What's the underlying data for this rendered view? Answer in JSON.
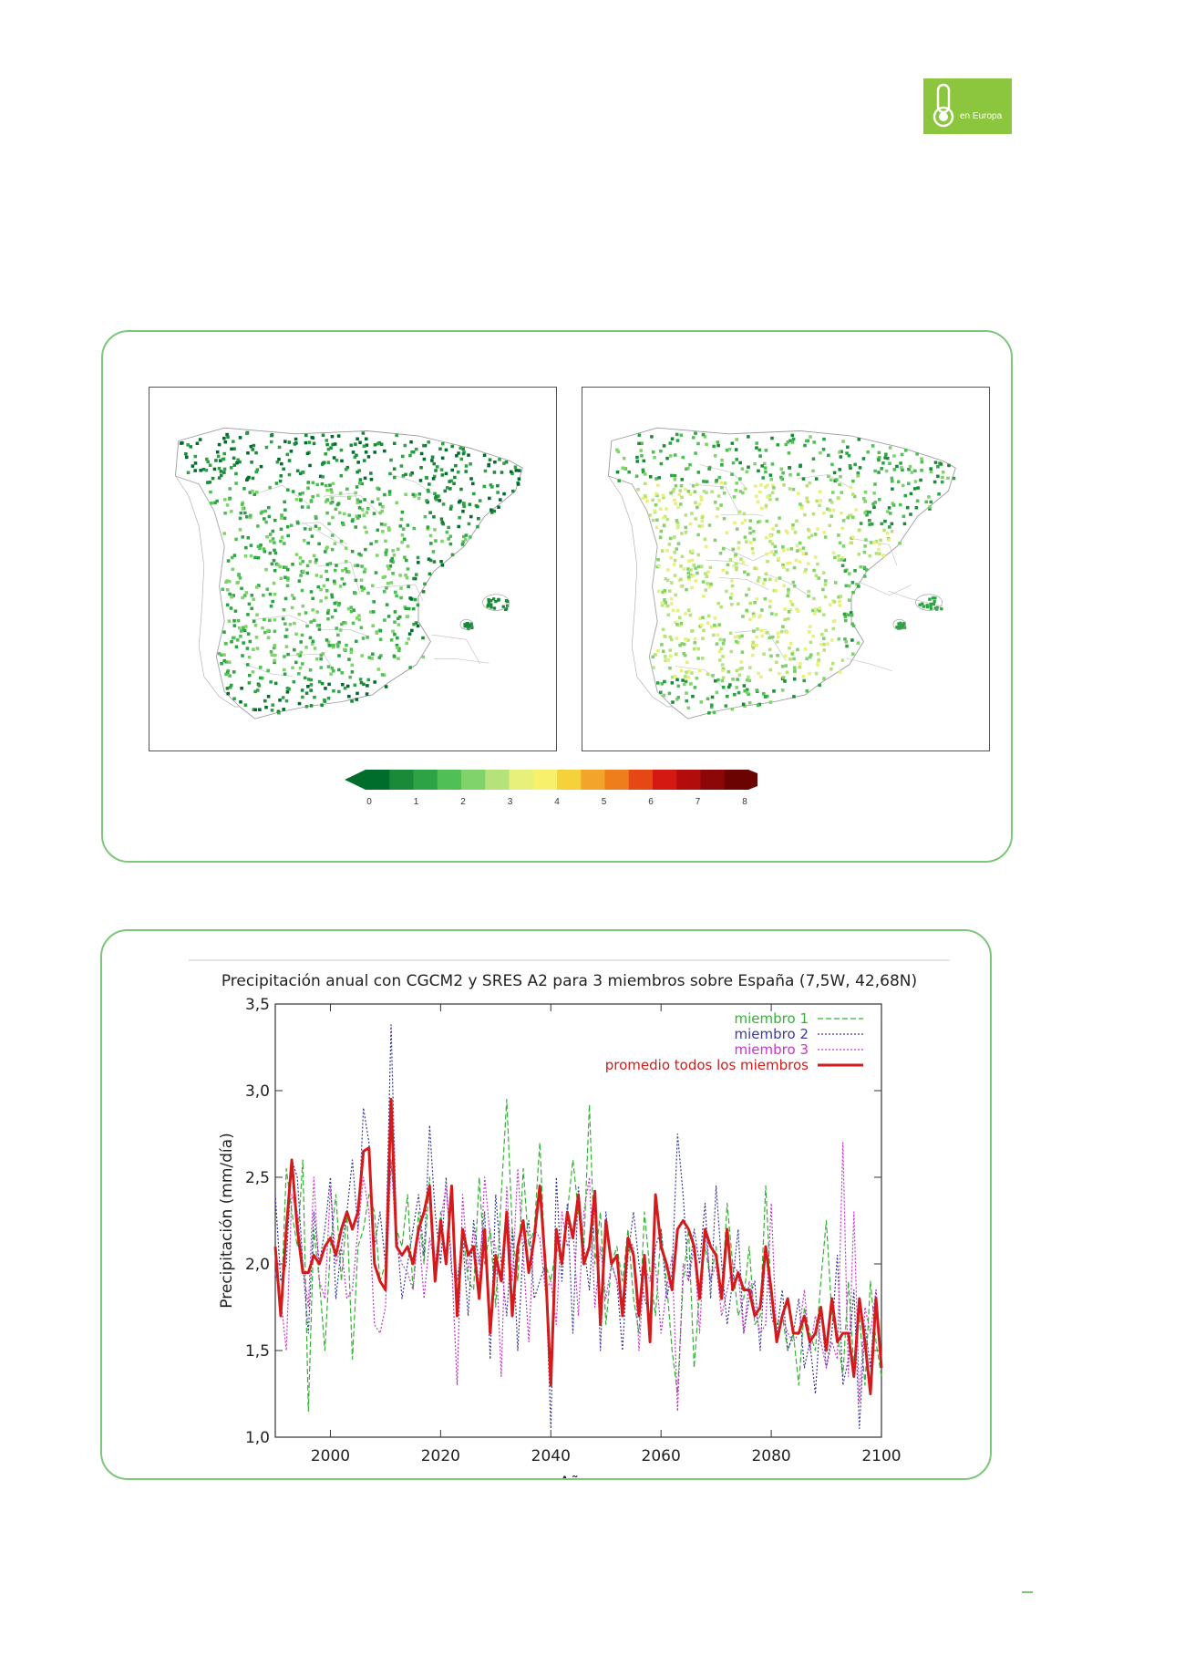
{
  "logo": {
    "text": "en Europa",
    "icon": "thermometer-icon",
    "color": "#8cc63f"
  },
  "maps_figure": {
    "colorbar": {
      "tick_labels": [
        "0",
        "1",
        "2",
        "3",
        "4",
        "5",
        "6",
        "7",
        "8"
      ],
      "colors": [
        "#006d2c",
        "#1a8a38",
        "#2ea345",
        "#4fbf56",
        "#7fd36a",
        "#b5e27a",
        "#e6f07a",
        "#f7f06a",
        "#f5d23c",
        "#f2a52a",
        "#ee7d1c",
        "#e54814",
        "#d41812",
        "#b30c0c",
        "#8c0707",
        "#6b0303"
      ]
    }
  },
  "chart_data": {
    "type": "line",
    "title": "Precipitación anual con CGCM2 y SRES A2 para 3 miembros sobre España (7,5W, 42,68N)",
    "xlabel": "Años",
    "ylabel": "Precipitación (mm/día)",
    "xlim": [
      1990,
      2100
    ],
    "ylim": [
      1.0,
      3.5
    ],
    "x_ticks": [
      "2000",
      "2020",
      "2040",
      "2060",
      "2080",
      "2100"
    ],
    "y_ticks": [
      "1,0",
      "1,5",
      "2,0",
      "2,5",
      "3,0",
      "3,5"
    ],
    "legend_position": "top-right",
    "x": [
      1990,
      1991,
      1992,
      1993,
      1994,
      1995,
      1996,
      1997,
      1998,
      1999,
      2000,
      2001,
      2002,
      2003,
      2004,
      2005,
      2006,
      2007,
      2008,
      2009,
      2010,
      2011,
      2012,
      2013,
      2014,
      2015,
      2016,
      2017,
      2018,
      2019,
      2020,
      2021,
      2022,
      2023,
      2024,
      2025,
      2026,
      2027,
      2028,
      2029,
      2030,
      2031,
      2032,
      2033,
      2034,
      2035,
      2036,
      2037,
      2038,
      2039,
      2040,
      2041,
      2042,
      2043,
      2044,
      2045,
      2046,
      2047,
      2048,
      2049,
      2050,
      2051,
      2052,
      2053,
      2054,
      2055,
      2056,
      2057,
      2058,
      2059,
      2060,
      2061,
      2062,
      2063,
      2064,
      2065,
      2066,
      2067,
      2068,
      2069,
      2070,
      2071,
      2072,
      2073,
      2074,
      2075,
      2076,
      2077,
      2078,
      2079,
      2080,
      2081,
      2082,
      2083,
      2084,
      2085,
      2086,
      2087,
      2088,
      2089,
      2090,
      2091,
      2092,
      2093,
      2094,
      2095,
      2096,
      2097,
      2098,
      2099,
      2100
    ],
    "series": [
      {
        "name": "miembro 1",
        "color": "#33b233",
        "style": "dashed",
        "values": [
          2.05,
          1.7,
          2.55,
          2.3,
          2.1,
          2.6,
          1.15,
          2.2,
          1.9,
          1.5,
          2.1,
          2.4,
          1.9,
          2.3,
          1.45,
          2.1,
          2.2,
          2.4,
          2.3,
          1.9,
          2.0,
          2.6,
          2.2,
          2.1,
          2.4,
          1.85,
          2.3,
          2.0,
          2.5,
          1.9,
          2.3,
          2.0,
          2.4,
          1.8,
          2.2,
          1.9,
          1.85,
          2.5,
          2.0,
          2.2,
          1.75,
          2.4,
          2.95,
          2.2,
          1.9,
          2.55,
          2.1,
          2.2,
          2.7,
          2.0,
          1.9,
          2.1,
          2.0,
          2.3,
          2.6,
          2.3,
          2.1,
          2.92,
          2.0,
          2.3,
          1.65,
          2.0,
          2.1,
          1.9,
          2.2,
          1.8,
          1.6,
          2.3,
          1.95,
          1.7,
          2.2,
          1.9,
          1.5,
          1.25,
          1.9,
          2.2,
          1.4,
          1.85,
          2.1,
          1.9,
          2.1,
          1.8,
          2.35,
          2.0,
          1.7,
          1.8,
          2.1,
          1.65,
          1.7,
          2.45,
          1.8,
          1.65,
          1.7,
          1.5,
          1.6,
          1.3,
          1.75,
          1.6,
          1.5,
          1.9,
          2.25,
          1.7,
          1.6,
          1.35,
          1.9,
          1.4,
          1.7,
          1.3,
          1.9,
          1.55,
          1.35
        ]
      },
      {
        "name": "miembro 2",
        "color": "#3a3a9a",
        "style": "dotted",
        "values": [
          2.4,
          1.9,
          2.0,
          2.6,
          2.5,
          2.0,
          1.6,
          2.3,
          2.0,
          2.2,
          2.5,
          1.8,
          2.1,
          2.3,
          2.6,
          2.2,
          2.9,
          2.7,
          2.1,
          2.3,
          2.0,
          3.38,
          2.2,
          1.8,
          2.0,
          2.2,
          2.4,
          2.05,
          2.8,
          2.3,
          2.0,
          2.5,
          1.95,
          1.9,
          2.15,
          1.7,
          2.25,
          2.0,
          2.3,
          1.45,
          2.4,
          2.0,
          1.7,
          2.2,
          1.5,
          2.1,
          2.25,
          1.8,
          1.9,
          2.0,
          1.05,
          2.5,
          1.9,
          2.35,
          1.6,
          2.45,
          2.1,
          1.85,
          2.4,
          1.5,
          2.3,
          2.0,
          1.9,
          1.5,
          2.05,
          2.3,
          2.0,
          1.8,
          1.7,
          2.1,
          2.2,
          1.8,
          1.95,
          2.75,
          2.4,
          1.9,
          2.2,
          2.0,
          2.35,
          1.8,
          2.45,
          2.0,
          1.65,
          1.9,
          2.2,
          1.6,
          1.8,
          1.9,
          1.5,
          2.1,
          1.7,
          1.6,
          1.85,
          1.5,
          1.6,
          1.8,
          1.4,
          1.55,
          1.25,
          1.75,
          1.4,
          1.6,
          2.05,
          1.3,
          1.45,
          1.85,
          1.05,
          1.65,
          1.4,
          1.85,
          1.45
        ]
      },
      {
        "name": "miembro 3",
        "color": "#cc33cc",
        "style": "dotted",
        "values": [
          1.95,
          1.8,
          1.5,
          2.4,
          2.3,
          2.0,
          1.75,
          2.5,
          1.9,
          1.8,
          2.45,
          2.0,
          2.1,
          1.8,
          1.85,
          2.2,
          2.5,
          2.3,
          1.65,
          1.6,
          1.75,
          2.6,
          2.1,
          2.0,
          1.95,
          1.85,
          2.2,
          1.8,
          2.15,
          2.0,
          2.25,
          2.45,
          2.0,
          1.3,
          2.4,
          1.95,
          2.2,
          1.85,
          2.5,
          2.15,
          2.1,
          1.35,
          2.45,
          1.9,
          2.55,
          2.05,
          1.55,
          2.2,
          2.15,
          1.85,
          1.9,
          1.65,
          2.3,
          2.1,
          2.2,
          1.7,
          2.3,
          2.5,
          1.75,
          2.1,
          1.8,
          2.0,
          1.9,
          1.7,
          2.15,
          2.1,
          1.5,
          2.0,
          1.9,
          2.0,
          1.6,
          1.85,
          2.05,
          1.15,
          2.0,
          1.9,
          2.1,
          1.6,
          2.2,
          1.9,
          2.0,
          1.7,
          1.85,
          2.0,
          1.95,
          1.6,
          1.9,
          1.75,
          1.6,
          1.65,
          2.35,
          1.55,
          1.7,
          1.6,
          1.55,
          1.6,
          1.85,
          1.5,
          1.7,
          1.55,
          1.4,
          1.55,
          1.45,
          2.7,
          1.35,
          2.3,
          1.2,
          1.75,
          1.6,
          1.85,
          1.4
        ]
      },
      {
        "name": "promedio todos los miembros",
        "color": "#d41a1a",
        "style": "solid-thick",
        "values": [
          2.1,
          1.7,
          2.2,
          2.6,
          2.2,
          1.95,
          1.95,
          2.05,
          2.0,
          2.1,
          2.15,
          2.05,
          2.2,
          2.3,
          2.2,
          2.3,
          2.65,
          2.67,
          2.0,
          1.9,
          1.85,
          2.95,
          2.1,
          2.05,
          2.1,
          2.0,
          2.2,
          2.3,
          2.45,
          1.9,
          2.25,
          2.0,
          2.45,
          1.7,
          2.2,
          2.05,
          2.1,
          1.8,
          2.2,
          1.6,
          2.05,
          1.9,
          2.3,
          1.7,
          2.1,
          2.25,
          1.95,
          2.15,
          2.45,
          2.0,
          1.3,
          2.2,
          2.0,
          2.3,
          2.15,
          2.4,
          2.0,
          2.1,
          2.42,
          1.65,
          2.25,
          2.0,
          2.05,
          1.7,
          2.15,
          2.05,
          1.7,
          2.05,
          1.55,
          2.4,
          2.1,
          2.0,
          1.85,
          2.2,
          2.25,
          2.2,
          2.1,
          1.8,
          2.2,
          2.1,
          2.05,
          1.8,
          2.2,
          1.85,
          1.95,
          1.85,
          1.85,
          1.7,
          1.75,
          2.1,
          1.85,
          1.55,
          1.7,
          1.8,
          1.6,
          1.6,
          1.7,
          1.55,
          1.6,
          1.75,
          1.5,
          1.8,
          1.55,
          1.6,
          1.6,
          1.35,
          1.8,
          1.55,
          1.25,
          1.8,
          1.4
        ]
      }
    ]
  }
}
